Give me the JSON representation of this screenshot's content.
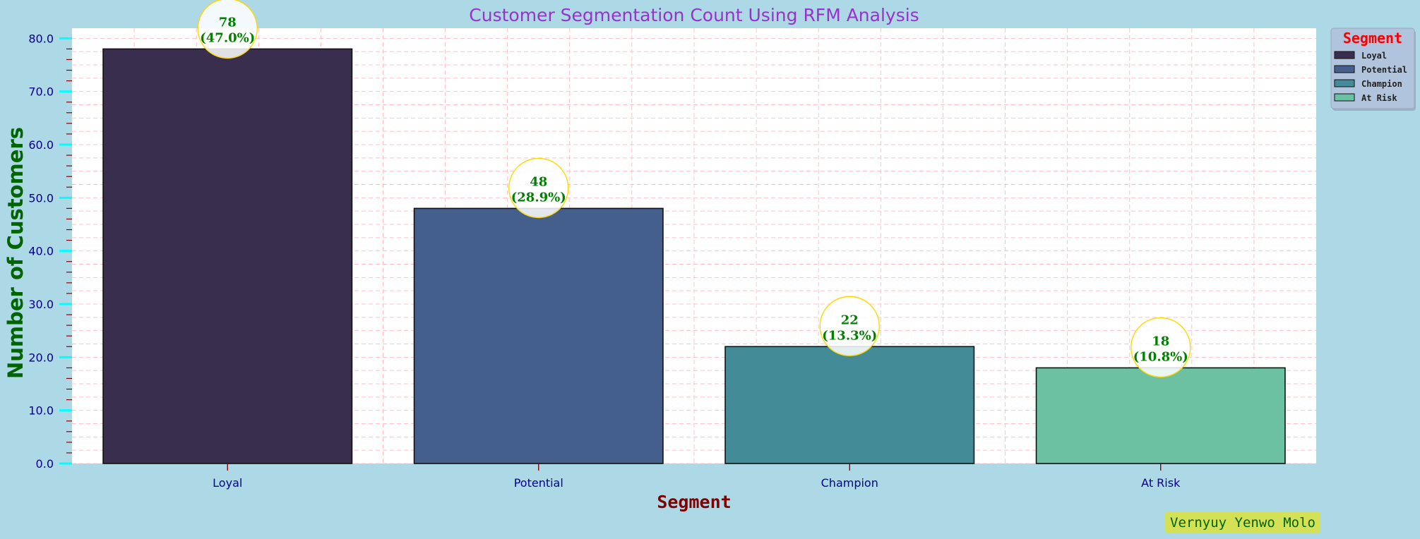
{
  "chart_data": {
    "type": "bar",
    "title": "Customer Segmentation Count Using RFM Analysis",
    "xlabel": "Segment",
    "ylabel": "Number of Customers",
    "categories": [
      "Loyal",
      "Potential",
      "Champion",
      "At Risk"
    ],
    "values": [
      78,
      48,
      22,
      18
    ],
    "data_labels": [
      "78\n(47.0%)",
      "48\n(28.9%)",
      "22\n(13.3%)",
      "18\n(10.8%)"
    ],
    "bar_colors": [
      "#3a2e4e",
      "#455f8c",
      "#438c97",
      "#6cc1a3"
    ],
    "ylim": [
      0,
      81.9
    ],
    "yticks": [
      0,
      10,
      20,
      30,
      40,
      50,
      60,
      70,
      80
    ],
    "ytick_labels": [
      "0.0",
      "10.0",
      "20.0",
      "30.0",
      "40.0",
      "50.0",
      "60.0",
      "70.0",
      "80.0"
    ],
    "grid": true,
    "legend": {
      "title": "Segment",
      "placement": "outside-top-right",
      "entries": [
        "Loyal",
        "Potential",
        "Champion",
        "At Risk"
      ]
    }
  },
  "watermark": "Vernyuy Yenwo Molo",
  "colors": {
    "background": "#add8e6",
    "plot_background": "#ffffff",
    "title": "#9932cc",
    "ylabel": "#006400",
    "xlabel": "#800000",
    "tick_label": "#00008b",
    "major_tick": "#00ffff",
    "minor_tick": "#8b0000",
    "grid": "#ffc0cb",
    "data_label_text": "#008000",
    "data_label_bubble_edge": "#ffd700",
    "legend_title": "#ff0000",
    "legend_bg": "#b0c4de",
    "watermark_bg": "#d4e157",
    "watermark_text": "#006400"
  }
}
